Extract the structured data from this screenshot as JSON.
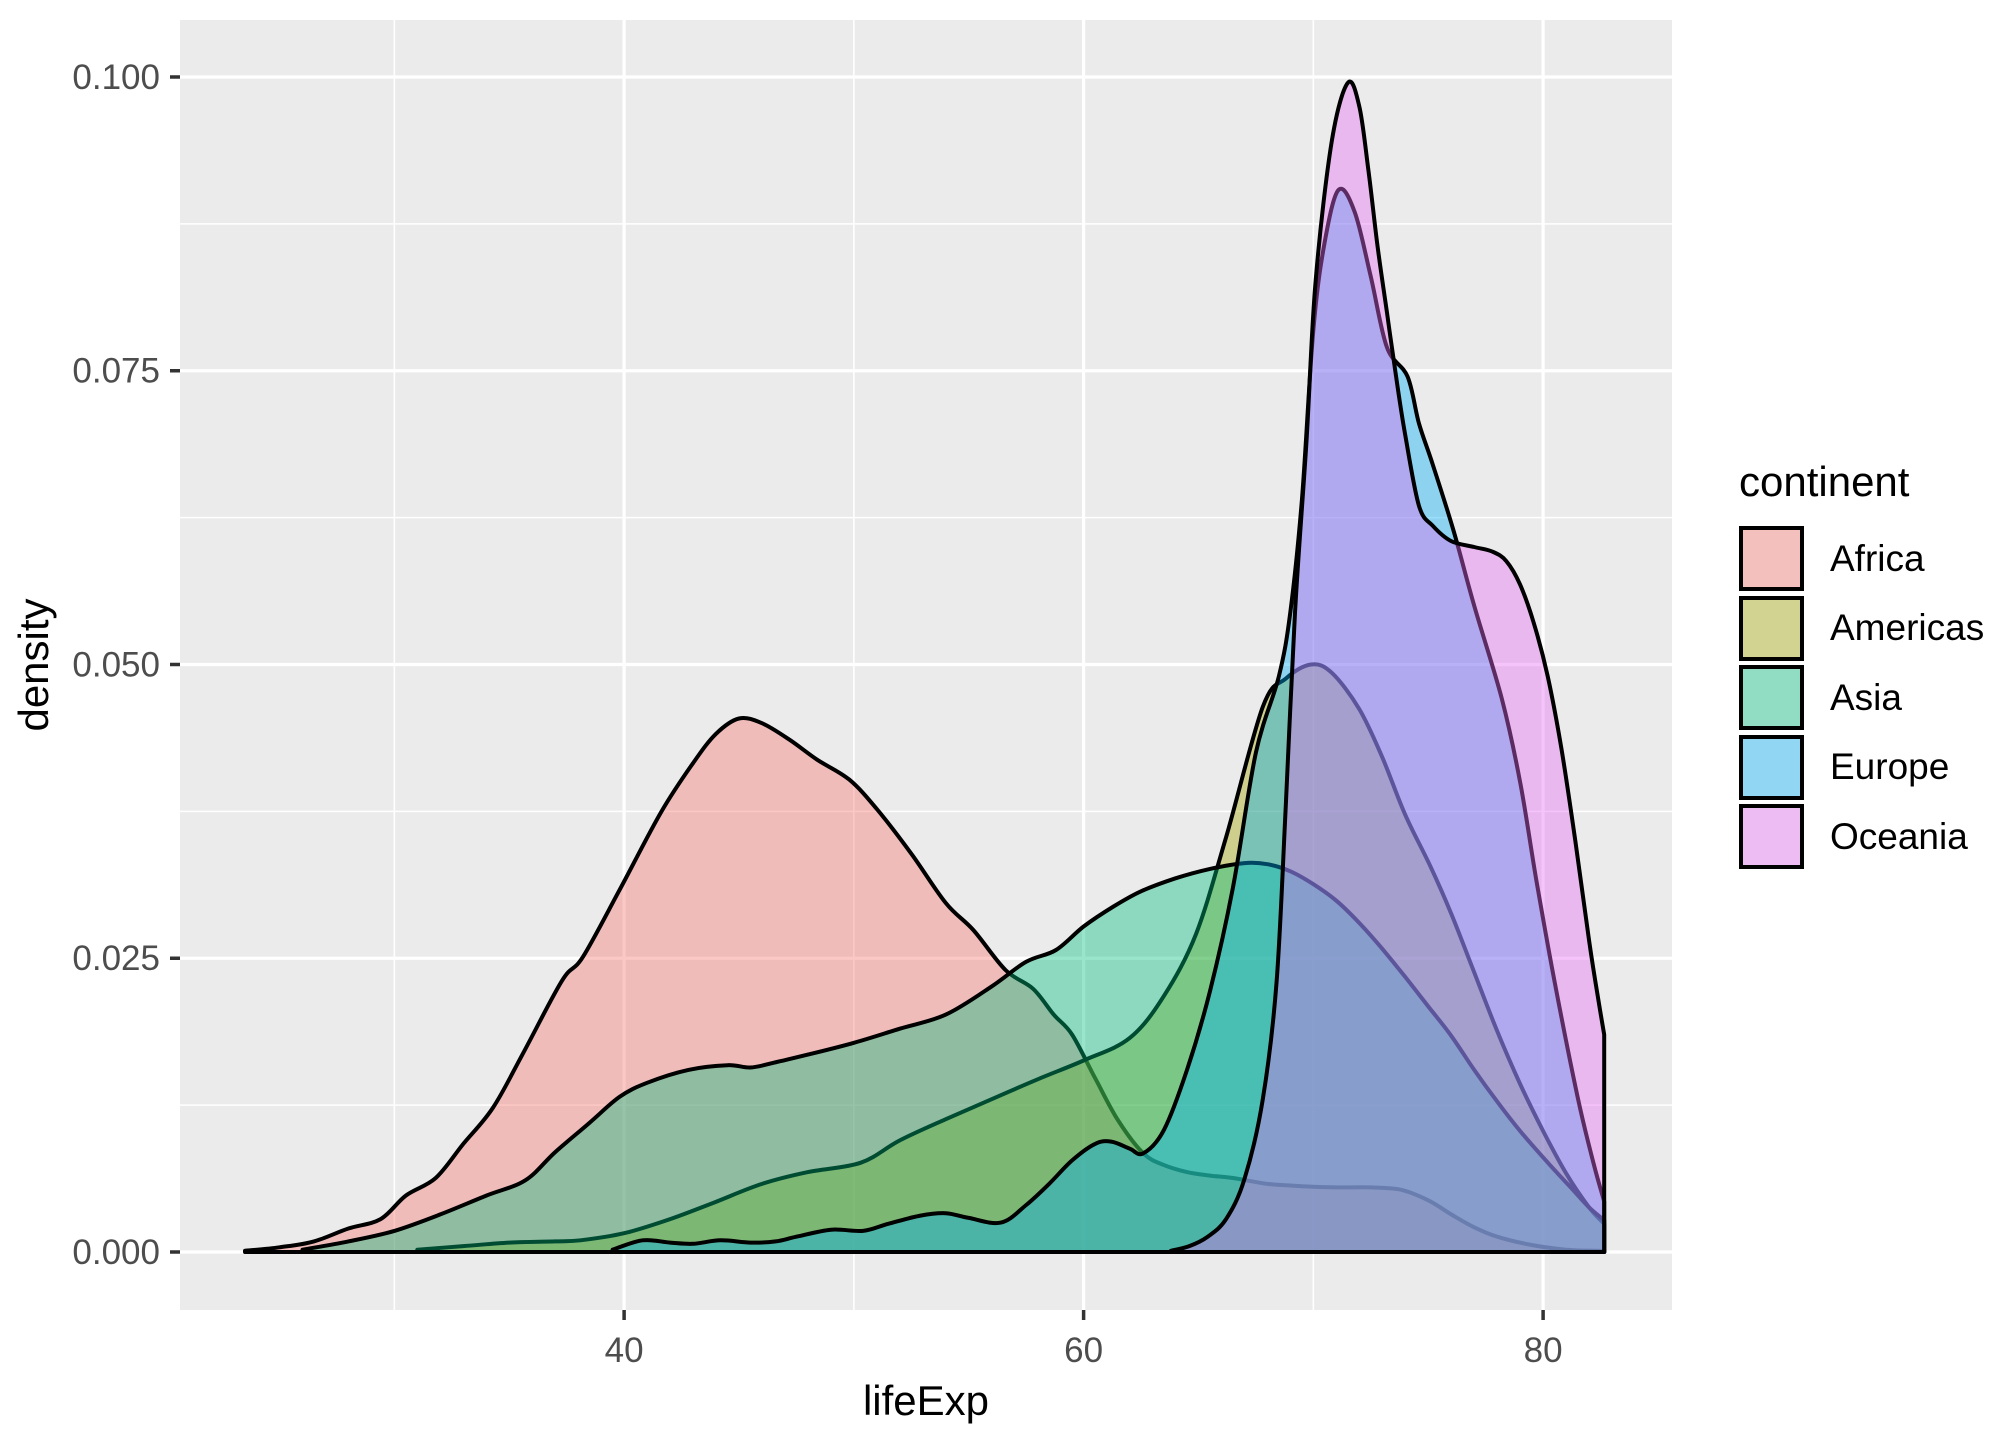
{
  "chart_data": {
    "type": "area",
    "subtype": "kernel-density",
    "title": "",
    "xlabel": "lifeExp",
    "ylabel": "density",
    "legend_title": "continent",
    "legend_position": "right",
    "grid": "on",
    "panel_color": "#EBEBEB",
    "grid_color": "#FFFFFF",
    "tick_color": "#333333",
    "tick_label_color": "#4D4D4D",
    "axis_title_color": "#000000",
    "outline_color": "#000000",
    "fill_opacity": 0.4,
    "xlim": [
      20.67,
      85.61
    ],
    "ylim": [
      -0.004936,
      0.10485
    ],
    "x_major_ticks": [
      {
        "v": 40,
        "label": "40"
      },
      {
        "v": 60,
        "label": "60"
      },
      {
        "v": 80,
        "label": "80"
      }
    ],
    "x_minor_ticks": [
      30,
      50,
      70
    ],
    "y_major_ticks": [
      {
        "v": 0.0,
        "label": "0.000"
      },
      {
        "v": 0.025,
        "label": "0.025"
      },
      {
        "v": 0.05,
        "label": "0.050"
      },
      {
        "v": 0.075,
        "label": "0.075"
      },
      {
        "v": 0.1,
        "label": "0.100"
      }
    ],
    "y_minor_ticks": [
      0.0125,
      0.0375,
      0.0625,
      0.0875
    ],
    "series": [
      {
        "name": "Africa",
        "color": "#F8766D",
        "points": [
          [
            23.5,
            0.0001
          ],
          [
            25,
            0.0004
          ],
          [
            26.5,
            0.0009
          ],
          [
            28,
            0.002
          ],
          [
            29.4,
            0.0028
          ],
          [
            30.5,
            0.0048
          ],
          [
            31.8,
            0.0063
          ],
          [
            33,
            0.0092
          ],
          [
            34.3,
            0.0123
          ],
          [
            35.6,
            0.0169
          ],
          [
            37.3,
            0.0231
          ],
          [
            38.2,
            0.0251
          ],
          [
            39.8,
            0.0308
          ],
          [
            41.6,
            0.0374
          ],
          [
            43,
            0.0416
          ],
          [
            44,
            0.0441
          ],
          [
            45,
            0.0454
          ],
          [
            46,
            0.045
          ],
          [
            47.2,
            0.0436
          ],
          [
            48.4,
            0.0419
          ],
          [
            49.8,
            0.0402
          ],
          [
            51,
            0.0377
          ],
          [
            52.5,
            0.0339
          ],
          [
            54,
            0.0297
          ],
          [
            55.2,
            0.0274
          ],
          [
            56.6,
            0.024
          ],
          [
            57.8,
            0.0224
          ],
          [
            58.7,
            0.0202
          ],
          [
            59.5,
            0.0185
          ],
          [
            60.5,
            0.0148
          ],
          [
            61.5,
            0.0112
          ],
          [
            62.6,
            0.0084
          ],
          [
            63.5,
            0.0074
          ],
          [
            64.5,
            0.0068
          ],
          [
            65.5,
            0.0065
          ],
          [
            66.5,
            0.0063
          ],
          [
            68,
            0.0058
          ],
          [
            69.5,
            0.0056
          ],
          [
            71,
            0.0055
          ],
          [
            72.5,
            0.0055
          ],
          [
            73.8,
            0.0053
          ],
          [
            75,
            0.0044
          ],
          [
            76,
            0.0032
          ],
          [
            77,
            0.0021
          ],
          [
            78,
            0.0013
          ],
          [
            79.5,
            0.0006
          ],
          [
            81,
            0.0002
          ],
          [
            82.3,
            0.0001
          ],
          [
            82.66,
            0.0001
          ]
        ]
      },
      {
        "name": "Americas",
        "color": "#A3A500",
        "points": [
          [
            31,
            0.0002
          ],
          [
            33,
            0.0005
          ],
          [
            35,
            0.0008
          ],
          [
            37,
            0.0009
          ],
          [
            38.1,
            0.001
          ],
          [
            40,
            0.0016
          ],
          [
            42,
            0.0028
          ],
          [
            43.9,
            0.0042
          ],
          [
            46,
            0.0058
          ],
          [
            48,
            0.0068
          ],
          [
            50.3,
            0.0076
          ],
          [
            52,
            0.0095
          ],
          [
            54,
            0.0113
          ],
          [
            56,
            0.013
          ],
          [
            58,
            0.0147
          ],
          [
            60,
            0.0163
          ],
          [
            62,
            0.0182
          ],
          [
            63.5,
            0.0218
          ],
          [
            64.9,
            0.0271
          ],
          [
            66.2,
            0.0353
          ],
          [
            67.8,
            0.0464
          ],
          [
            68.8,
            0.0488
          ],
          [
            69.9,
            0.05
          ],
          [
            70.8,
            0.0493
          ],
          [
            72,
            0.0462
          ],
          [
            73,
            0.0421
          ],
          [
            74,
            0.0372
          ],
          [
            75.1,
            0.0328
          ],
          [
            76,
            0.0288
          ],
          [
            77,
            0.0238
          ],
          [
            78,
            0.0188
          ],
          [
            79,
            0.0143
          ],
          [
            80,
            0.0103
          ],
          [
            81,
            0.0067
          ],
          [
            82,
            0.0038
          ],
          [
            82.66,
            0.0024
          ]
        ]
      },
      {
        "name": "Asia",
        "color": "#00BF7D",
        "points": [
          [
            26,
            0.0002
          ],
          [
            28,
            0.0009
          ],
          [
            30,
            0.0018
          ],
          [
            32,
            0.0032
          ],
          [
            34,
            0.0048
          ],
          [
            35.7,
            0.0061
          ],
          [
            37,
            0.0085
          ],
          [
            38.5,
            0.011
          ],
          [
            39.8,
            0.0132
          ],
          [
            41,
            0.0144
          ],
          [
            42.8,
            0.0155
          ],
          [
            44.5,
            0.0159
          ],
          [
            45.5,
            0.0157
          ],
          [
            46.5,
            0.0161
          ],
          [
            48,
            0.0168
          ],
          [
            50,
            0.0178
          ],
          [
            52,
            0.019
          ],
          [
            54,
            0.0202
          ],
          [
            56,
            0.0226
          ],
          [
            57.5,
            0.0247
          ],
          [
            58.8,
            0.0257
          ],
          [
            60,
            0.0277
          ],
          [
            61.3,
            0.0294
          ],
          [
            62.5,
            0.0307
          ],
          [
            64,
            0.0318
          ],
          [
            65.5,
            0.0326
          ],
          [
            67,
            0.0331
          ],
          [
            68,
            0.033
          ],
          [
            69,
            0.0324
          ],
          [
            70,
            0.0313
          ],
          [
            71,
            0.0299
          ],
          [
            72,
            0.028
          ],
          [
            73,
            0.0258
          ],
          [
            74,
            0.0234
          ],
          [
            75,
            0.0209
          ],
          [
            76,
            0.0184
          ],
          [
            77,
            0.0155
          ],
          [
            78,
            0.0128
          ],
          [
            79,
            0.0103
          ],
          [
            80.3,
            0.0074
          ],
          [
            81.2,
            0.0055
          ],
          [
            82,
            0.0038
          ],
          [
            82.66,
            0.0027
          ]
        ]
      },
      {
        "name": "Europe",
        "color": "#00B0F6",
        "points": [
          [
            39.5,
            0.0002
          ],
          [
            40.8,
            0.001
          ],
          [
            42,
            0.0008
          ],
          [
            43,
            0.0007
          ],
          [
            44.2,
            0.001
          ],
          [
            45.5,
            0.0008
          ],
          [
            46.6,
            0.0009
          ],
          [
            47.5,
            0.0013
          ],
          [
            49,
            0.0019
          ],
          [
            50.4,
            0.0018
          ],
          [
            51.5,
            0.0024
          ],
          [
            52.9,
            0.0031
          ],
          [
            54,
            0.0033
          ],
          [
            55,
            0.0029
          ],
          [
            56.4,
            0.0025
          ],
          [
            57.5,
            0.004
          ],
          [
            58.5,
            0.0058
          ],
          [
            59.5,
            0.0078
          ],
          [
            60.5,
            0.0092
          ],
          [
            61.2,
            0.0094
          ],
          [
            62,
            0.0088
          ],
          [
            62.6,
            0.0084
          ],
          [
            63.5,
            0.0104
          ],
          [
            64.5,
            0.0155
          ],
          [
            65.5,
            0.0222
          ],
          [
            66.5,
            0.031
          ],
          [
            67.5,
            0.0425
          ],
          [
            68.5,
            0.049
          ],
          [
            69,
            0.0545
          ],
          [
            69.5,
            0.064
          ],
          [
            70,
            0.0785
          ],
          [
            70.5,
            0.086
          ],
          [
            71.1,
            0.0904
          ],
          [
            71.8,
            0.0885
          ],
          [
            72.5,
            0.083
          ],
          [
            73.2,
            0.077
          ],
          [
            74.1,
            0.0745
          ],
          [
            74.6,
            0.0705
          ],
          [
            75.2,
            0.067
          ],
          [
            76.1,
            0.0614
          ],
          [
            77,
            0.055
          ],
          [
            78.2,
            0.0471
          ],
          [
            79,
            0.04
          ],
          [
            79.7,
            0.0317
          ],
          [
            80.5,
            0.023
          ],
          [
            81.5,
            0.0132
          ],
          [
            82.2,
            0.0075
          ],
          [
            82.66,
            0.0043
          ]
        ]
      },
      {
        "name": "Oceania",
        "color": "#E76BF3",
        "points": [
          [
            63.8,
            0.0001
          ],
          [
            64.6,
            0.0005
          ],
          [
            65.4,
            0.0013
          ],
          [
            66.2,
            0.0028
          ],
          [
            67,
            0.0062
          ],
          [
            67.8,
            0.013
          ],
          [
            68.4,
            0.023
          ],
          [
            68.8,
            0.038
          ],
          [
            69.2,
            0.0544
          ],
          [
            69.7,
            0.069
          ],
          [
            70.1,
            0.0827
          ],
          [
            70.8,
            0.0945
          ],
          [
            71.5,
            0.0995
          ],
          [
            72,
            0.0975
          ],
          [
            72.4,
            0.092
          ],
          [
            72.8,
            0.0855
          ],
          [
            73.2,
            0.08
          ],
          [
            73.6,
            0.0745
          ],
          [
            74,
            0.0695
          ],
          [
            74.6,
            0.0635
          ],
          [
            75.2,
            0.0618
          ],
          [
            76,
            0.0605
          ],
          [
            77,
            0.06
          ],
          [
            77.8,
            0.0596
          ],
          [
            78.4,
            0.0588
          ],
          [
            79,
            0.0568
          ],
          [
            79.6,
            0.0535
          ],
          [
            80.2,
            0.049
          ],
          [
            80.8,
            0.0428
          ],
          [
            81.4,
            0.035
          ],
          [
            82,
            0.0265
          ],
          [
            82.4,
            0.0215
          ],
          [
            82.66,
            0.0185
          ]
        ]
      }
    ]
  }
}
